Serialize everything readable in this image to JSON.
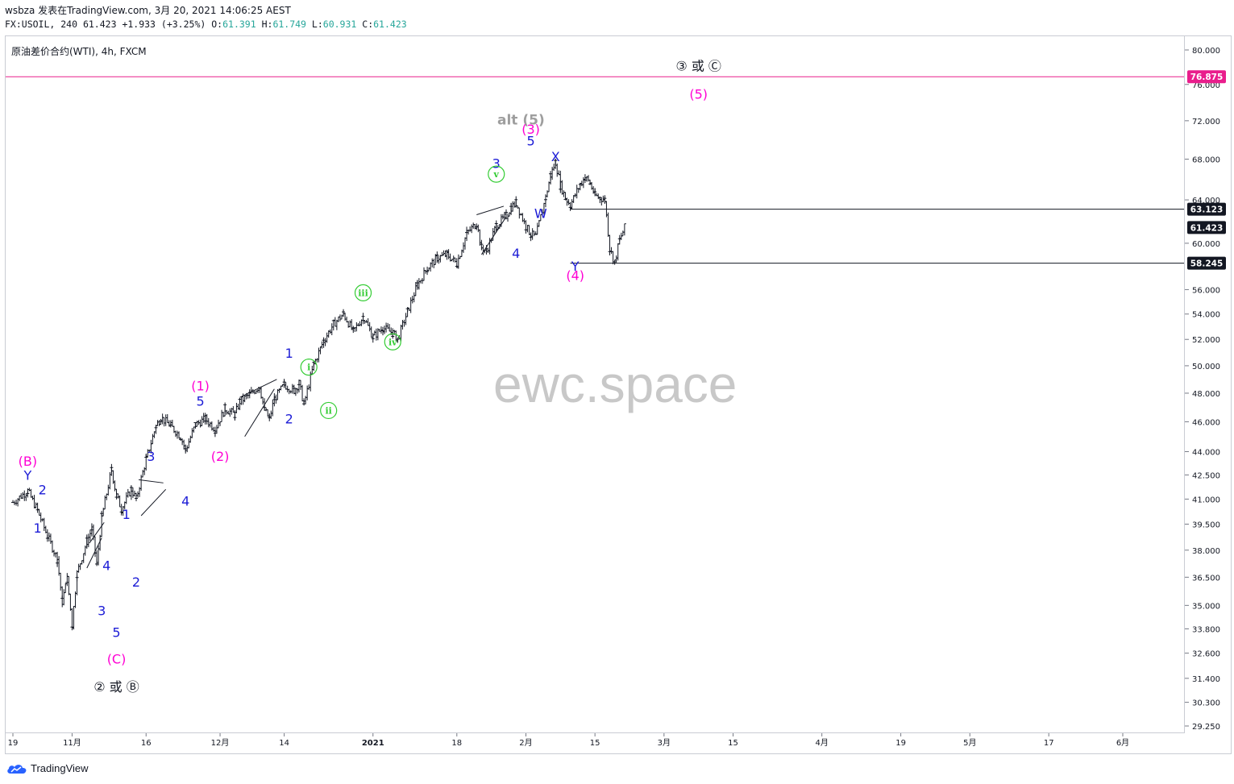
{
  "header": {
    "line1": "wsbza 发表在TradingView.com, 3月 20, 2021 14:06:25 AEST",
    "symbol_prefix": "FX:USOIL, 240",
    "last": "61.423",
    "change": "+1.933 (+3.25%)",
    "o_label": "O:",
    "o": "61.391",
    "h_label": "H:",
    "h": "61.749",
    "l_label": "L:",
    "l": "60.931",
    "c_label": "C:",
    "c": "61.423"
  },
  "chart_title": "原油差价合约(WTI), 4h, FXCM",
  "watermark": "ewc.space",
  "brand": "TradingView",
  "colors": {
    "magenta": "#ff00d4",
    "blue": "#1c1cd6",
    "green": "#33cc33",
    "black": "#131722",
    "gray": "#9e9e9e",
    "hline_magenta": "#e91e8c"
  },
  "chart_data": {
    "type": "line",
    "subtype": "ohlc-bars",
    "symbol": "FX:USOIL",
    "timeframe": "240",
    "y_scale": "log",
    "ylim": [
      29.25,
      80.0
    ],
    "y_ticks": [
      "80.000",
      "76.000",
      "72.000",
      "68.000",
      "64.000",
      "60.000",
      "56.000",
      "54.000",
      "52.000",
      "50.000",
      "48.000",
      "46.000",
      "44.000",
      "42.500",
      "41.000",
      "39.500",
      "38.000",
      "36.500",
      "35.000",
      "33.800",
      "32.600",
      "31.400",
      "30.300",
      "29.250"
    ],
    "y_tick_values": [
      80,
      76,
      72,
      68,
      64,
      60,
      56,
      54,
      52,
      50,
      48,
      46,
      44,
      42.5,
      41,
      39.5,
      38,
      36.5,
      35,
      33.8,
      32.6,
      31.4,
      30.3,
      29.25
    ],
    "x_ticks": [
      "19",
      "11月",
      "16",
      "12月",
      "14",
      "2021",
      "18",
      "2月",
      "15",
      "3月",
      "15",
      "4月",
      "19",
      "5月",
      "17",
      "6月"
    ],
    "x_tick_days": [
      -10,
      2,
      17,
      32,
      45,
      63,
      80,
      94,
      108,
      122,
      136,
      154,
      170,
      184,
      200,
      215
    ],
    "x_tick_dates": [
      "2020-10-19",
      "2020-11-01",
      "2020-11-16",
      "2020-12-01",
      "2020-12-14",
      "2021-01-01",
      "2021-01-18",
      "2021-02-01",
      "2021-02-15",
      "2021-03-01",
      "2021-03-15",
      "2021-04-01",
      "2021-04-19",
      "2021-05-01",
      "2021-05-17",
      "2021-06-01"
    ],
    "price_path": [
      [
        -10,
        40.8
      ],
      [
        -7,
        41.5
      ],
      [
        -5,
        40.3
      ],
      [
        -3,
        38.8
      ],
      [
        -1,
        37.5
      ],
      [
        0,
        35.2
      ],
      [
        1,
        36.4
      ],
      [
        2,
        34.0
      ],
      [
        3,
        36.7
      ],
      [
        5,
        38.5
      ],
      [
        6,
        39.2
      ],
      [
        7,
        37.2
      ],
      [
        8,
        39.9
      ],
      [
        10,
        42.8
      ],
      [
        11,
        41.2
      ],
      [
        12,
        40.4
      ],
      [
        14,
        41.6
      ],
      [
        15,
        41.0
      ],
      [
        17,
        43.5
      ],
      [
        19,
        45.7
      ],
      [
        20,
        46.3
      ],
      [
        22,
        45.7
      ],
      [
        24,
        45.0
      ],
      [
        25,
        44.1
      ],
      [
        27,
        45.8
      ],
      [
        29,
        46.2
      ],
      [
        31,
        45.5
      ],
      [
        33,
        46.9
      ],
      [
        35,
        46.5
      ],
      [
        36,
        47.4
      ],
      [
        38,
        47.9
      ],
      [
        40,
        48.5
      ],
      [
        41,
        46.8
      ],
      [
        42,
        46.2
      ],
      [
        43,
        47.6
      ],
      [
        45,
        48.6
      ],
      [
        47,
        48.2
      ],
      [
        48,
        48.7
      ],
      [
        49,
        47.2
      ],
      [
        51,
        50.1
      ],
      [
        53,
        51.9
      ],
      [
        55,
        53.2
      ],
      [
        57,
        54.0
      ],
      [
        59,
        52.6
      ],
      [
        61,
        53.8
      ],
      [
        63,
        52.2
      ],
      [
        65,
        52.9
      ],
      [
        67,
        52.5
      ],
      [
        68,
        52.0
      ],
      [
        70,
        54.2
      ],
      [
        72,
        56.4
      ],
      [
        74,
        57.8
      ],
      [
        76,
        58.7
      ],
      [
        78,
        59.0
      ],
      [
        80,
        58.2
      ],
      [
        82,
        60.9
      ],
      [
        84,
        61.8
      ],
      [
        85,
        59.6
      ],
      [
        86,
        59.3
      ],
      [
        88,
        61.6
      ],
      [
        90,
        62.5
      ],
      [
        91,
        63.3
      ],
      [
        92,
        63.7
      ],
      [
        94,
        61.5
      ],
      [
        95,
        60.8
      ],
      [
        96,
        60.6
      ],
      [
        98,
        64.2
      ],
      [
        99,
        66.4
      ],
      [
        100,
        67.7
      ],
      [
        101,
        65.4
      ],
      [
        102,
        64.2
      ],
      [
        103,
        63.5
      ],
      [
        105,
        65.5
      ],
      [
        106,
        66.2
      ],
      [
        107,
        65.6
      ],
      [
        108,
        64.4
      ],
      [
        109,
        64.2
      ],
      [
        110,
        64.0
      ],
      [
        111,
        59.5
      ],
      [
        112,
        58.3
      ],
      [
        113,
        60.3
      ],
      [
        114,
        61.4
      ]
    ],
    "horizontal_levels": [
      {
        "label": "76.875",
        "value": 76.875
      },
      {
        "label": "63.123",
        "value": 63.123
      },
      {
        "label": "61.423",
        "value": 61.423
      },
      {
        "label": "58.245",
        "value": 58.245
      }
    ],
    "annotations": [
      {
        "text": "③ 或 Ⓒ",
        "day": 129,
        "price": 77.6,
        "color": "black"
      },
      {
        "text": "(5)",
        "day": 129,
        "price": 74.4,
        "color": "magenta"
      },
      {
        "text": "alt (5)",
        "day": 93,
        "price": 71.6,
        "color": "gray"
      },
      {
        "text": "(3)",
        "day": 95,
        "price": 70.6,
        "color": "magenta"
      },
      {
        "text": "5",
        "day": 95,
        "price": 69.4,
        "color": "blue"
      },
      {
        "text": "X",
        "day": 100,
        "price": 67.8,
        "color": "blue"
      },
      {
        "text": "3",
        "day": 88,
        "price": 67.1,
        "color": "blue"
      },
      {
        "text": "v",
        "day": 88,
        "price": 66.1,
        "color": "green",
        "circle": true
      },
      {
        "text": "W",
        "day": 97,
        "price": 62.3,
        "color": "blue"
      },
      {
        "text": "4",
        "day": 92,
        "price": 58.7,
        "color": "blue"
      },
      {
        "text": "Y",
        "day": 104,
        "price": 57.6,
        "color": "blue"
      },
      {
        "text": "(4)",
        "day": 104,
        "price": 56.8,
        "color": "magenta"
      },
      {
        "text": "iii",
        "day": 61,
        "price": 55.4,
        "color": "green",
        "circle": true
      },
      {
        "text": "iv",
        "day": 67,
        "price": 51.5,
        "color": "green",
        "circle": true
      },
      {
        "text": "1",
        "day": 46,
        "price": 50.6,
        "color": "blue"
      },
      {
        "text": "i",
        "day": 50,
        "price": 49.6,
        "color": "green",
        "circle": true
      },
      {
        "text": "ii",
        "day": 54,
        "price": 46.5,
        "color": "green",
        "circle": true
      },
      {
        "text": "2",
        "day": 46,
        "price": 45.9,
        "color": "blue"
      },
      {
        "text": "(1)",
        "day": 28,
        "price": 48.2,
        "color": "magenta"
      },
      {
        "text": "5",
        "day": 28,
        "price": 47.1,
        "color": "blue"
      },
      {
        "text": "(2)",
        "day": 32,
        "price": 43.4,
        "color": "magenta"
      },
      {
        "text": "3",
        "day": 18,
        "price": 43.4,
        "color": "blue"
      },
      {
        "text": "4",
        "day": 25,
        "price": 40.6,
        "color": "blue"
      },
      {
        "text": "(B)",
        "day": -7,
        "price": 43.1,
        "color": "magenta"
      },
      {
        "text": "Y",
        "day": -7,
        "price": 42.2,
        "color": "blue"
      },
      {
        "text": "2",
        "day": -4,
        "price": 41.3,
        "color": "blue"
      },
      {
        "text": "1",
        "day": -5,
        "price": 39.0,
        "color": "blue"
      },
      {
        "text": "1",
        "day": 13,
        "price": 39.8,
        "color": "blue"
      },
      {
        "text": "4",
        "day": 9,
        "price": 36.9,
        "color": "blue"
      },
      {
        "text": "2",
        "day": 15,
        "price": 36.0,
        "color": "blue"
      },
      {
        "text": "3",
        "day": 8,
        "price": 34.5,
        "color": "blue"
      },
      {
        "text": "5",
        "day": 11,
        "price": 33.4,
        "color": "blue"
      },
      {
        "text": "(C)",
        "day": 11,
        "price": 32.1,
        "color": "magenta"
      },
      {
        "text": "② 或 Ⓑ",
        "day": 11,
        "price": 30.8,
        "color": "black"
      }
    ]
  }
}
